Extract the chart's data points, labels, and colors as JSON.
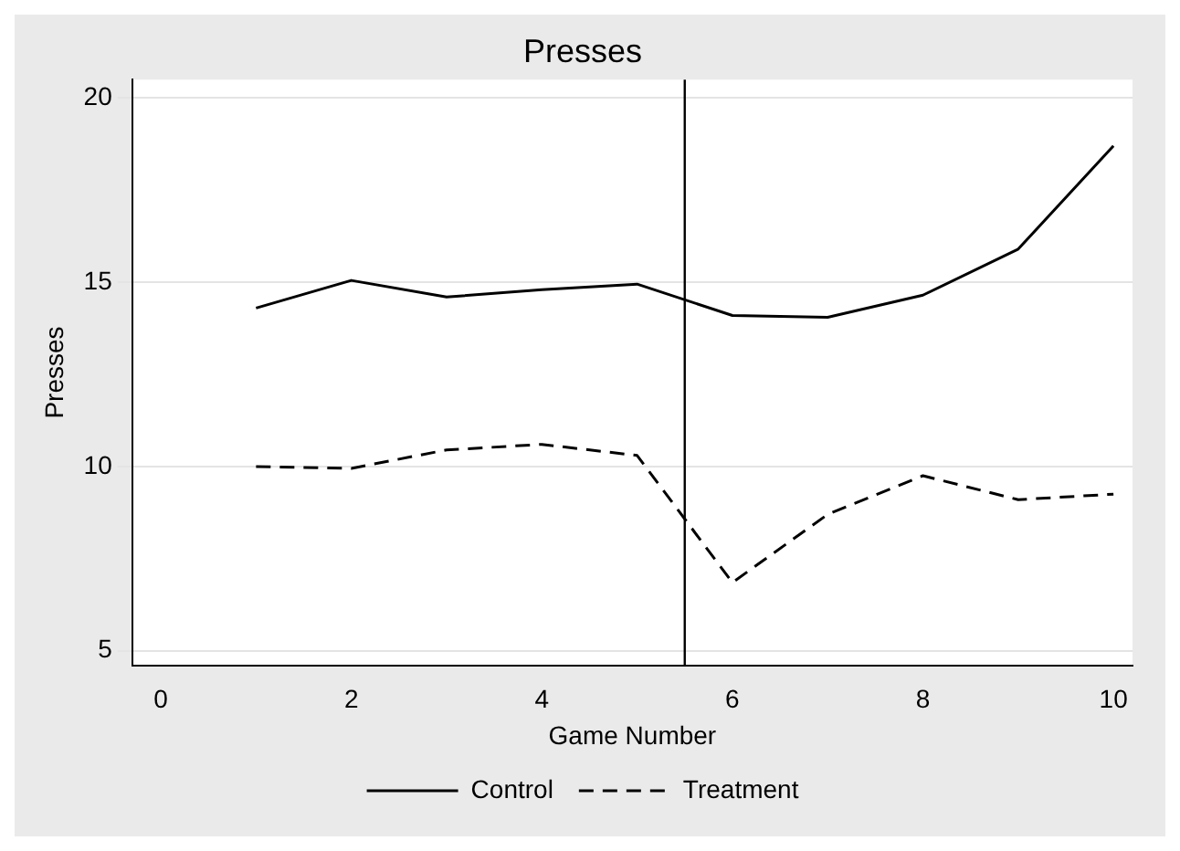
{
  "chart_data": {
    "type": "line",
    "title": "Presses",
    "xlabel": "Game Number",
    "ylabel": "Presses",
    "x": [
      1,
      2,
      3,
      4,
      5,
      6,
      7,
      8,
      9,
      10
    ],
    "series": [
      {
        "name": "Control",
        "color": "#000000",
        "line_style": "solid",
        "values": [
          14.3,
          15.05,
          14.6,
          14.8,
          14.95,
          14.1,
          14.05,
          14.65,
          15.9,
          18.7
        ]
      },
      {
        "name": "Treatment",
        "color": "#000000",
        "line_style": "dashed",
        "values": [
          10.0,
          9.95,
          10.45,
          10.6,
          10.3,
          6.85,
          8.7,
          9.75,
          9.1,
          9.25
        ]
      }
    ],
    "xlim": [
      -0.3,
      10.2
    ],
    "xticks": [
      0,
      2,
      4,
      6,
      8,
      10
    ],
    "ylim": [
      4.6,
      20.5
    ],
    "yticks": [
      5,
      10,
      15,
      20
    ],
    "ref_lines": [
      {
        "axis": "x",
        "value": 5.5,
        "color": "#000000"
      }
    ],
    "grid": "y",
    "legend": "bottom",
    "marker": "none"
  }
}
